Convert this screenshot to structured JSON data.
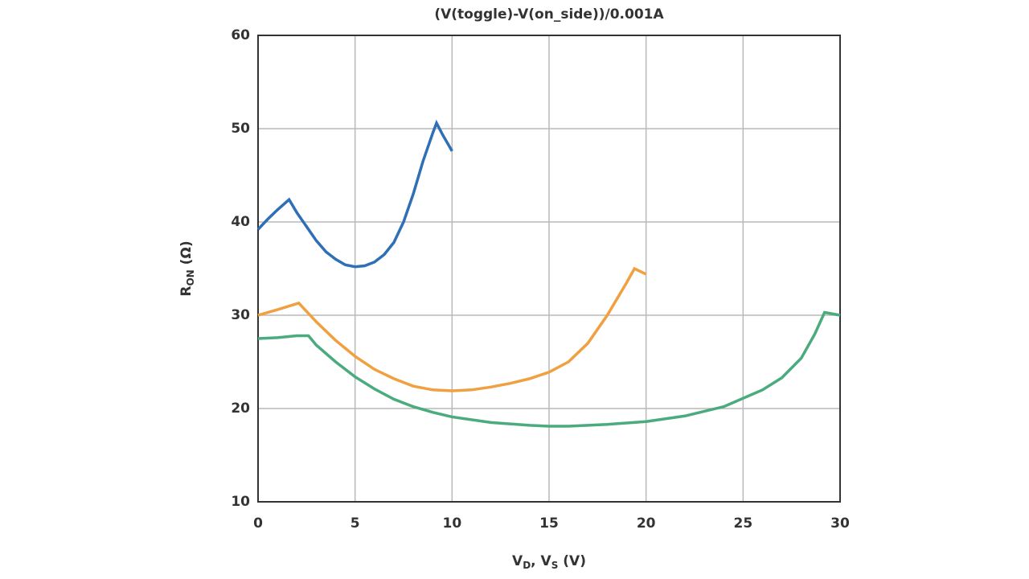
{
  "chart_data": {
    "type": "line",
    "title": "(V(toggle)-V(on_side))/0.001A",
    "ylabel": {
      "main": "R",
      "sub": "ON",
      "rest": " (Ω)"
    },
    "xlabel": {
      "parts": [
        {
          "main": "V",
          "sub": "D"
        },
        {
          "main": ", V",
          "sub": "S"
        }
      ],
      "rest": " (V)"
    },
    "xlim": [
      0,
      30
    ],
    "xticks": [
      0,
      5,
      10,
      15,
      20,
      25,
      30
    ],
    "ylim": [
      10,
      60
    ],
    "yticks": [
      10,
      20,
      30,
      40,
      50,
      60
    ],
    "grid": true,
    "series": [
      {
        "color": "#2f6fb5",
        "x": [
          0,
          0.5,
          1,
          1.6,
          2,
          2.5,
          3,
          3.5,
          4,
          4.5,
          5,
          5.5,
          6,
          6.5,
          7,
          7.5,
          8,
          8.5,
          9,
          9.2,
          9.5,
          10
        ],
        "values": [
          39.2,
          40.3,
          41.3,
          42.4,
          41,
          39.5,
          38,
          36.8,
          36,
          35.4,
          35.2,
          35.3,
          35.7,
          36.5,
          37.8,
          40,
          43,
          46.5,
          49.5,
          50.6,
          49.4,
          47.6
        ]
      },
      {
        "color": "#f0a040",
        "x": [
          0,
          1,
          2.1,
          3,
          4,
          5,
          6,
          7,
          8,
          9,
          10,
          11,
          12,
          13,
          14,
          15,
          16,
          17,
          18,
          19,
          19.4,
          20
        ],
        "values": [
          30,
          30.6,
          31.3,
          29.3,
          27.3,
          25.6,
          24.2,
          23.2,
          22.4,
          22,
          21.9,
          22,
          22.3,
          22.7,
          23.2,
          23.9,
          25,
          27,
          30,
          33.5,
          35,
          34.4
        ]
      },
      {
        "color": "#4aab7e",
        "x": [
          0,
          1,
          2,
          2.6,
          3,
          4,
          5,
          6,
          7,
          8,
          9,
          10,
          12,
          14,
          15,
          16,
          18,
          20,
          22,
          24,
          26,
          27,
          28,
          28.7,
          29.2,
          30
        ],
        "values": [
          27.5,
          27.6,
          27.8,
          27.8,
          26.8,
          25,
          23.4,
          22.1,
          21,
          20.2,
          19.6,
          19.1,
          18.5,
          18.2,
          18.1,
          18.1,
          18.3,
          18.6,
          19.2,
          20.2,
          22,
          23.3,
          25.4,
          28,
          30.3,
          30
        ]
      }
    ]
  }
}
